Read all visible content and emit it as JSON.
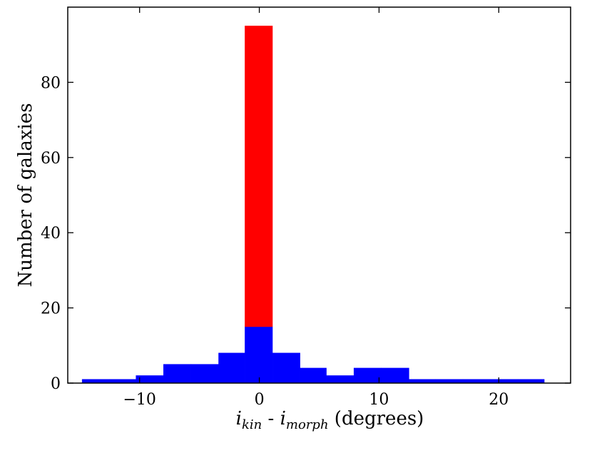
{
  "chart_data": {
    "type": "bar",
    "subtype": "stacked-histogram",
    "title": "",
    "xlabel": {
      "main1": "i",
      "sub1": "kin",
      "sep": " - ",
      "main2": "i",
      "sub2": "morph",
      "unit": " (degrees)"
    },
    "ylabel": "Number of galaxies",
    "xlim": [
      -16,
      26
    ],
    "ylim": [
      0,
      100
    ],
    "xticks": [
      -10,
      0,
      10,
      20
    ],
    "xtick_labels": [
      "−10",
      "0",
      "10",
      "20"
    ],
    "yticks": [
      0,
      20,
      40,
      60,
      80
    ],
    "ytick_labels": [
      "0",
      "20",
      "40",
      "60",
      "80"
    ],
    "grid": false,
    "legend": "none",
    "bin_edges": [
      -14.8,
      -12.5,
      -10.3,
      -8.0,
      -5.7,
      -3.4,
      -1.2,
      1.1,
      3.4,
      5.6,
      7.9,
      10.2,
      12.5,
      14.7,
      17.0,
      19.3,
      21.6,
      23.8
    ],
    "series": [
      {
        "color": "#0000ff",
        "values": [
          1,
          1,
          2,
          5,
          5,
          8,
          15,
          8,
          4,
          2,
          4,
          4,
          1,
          1,
          1,
          1,
          1
        ]
      },
      {
        "color": "#ff0000",
        "values": [
          0,
          0,
          0,
          0,
          0,
          0,
          80,
          0,
          0,
          0,
          0,
          0,
          0,
          0,
          0,
          0,
          0
        ]
      }
    ]
  }
}
